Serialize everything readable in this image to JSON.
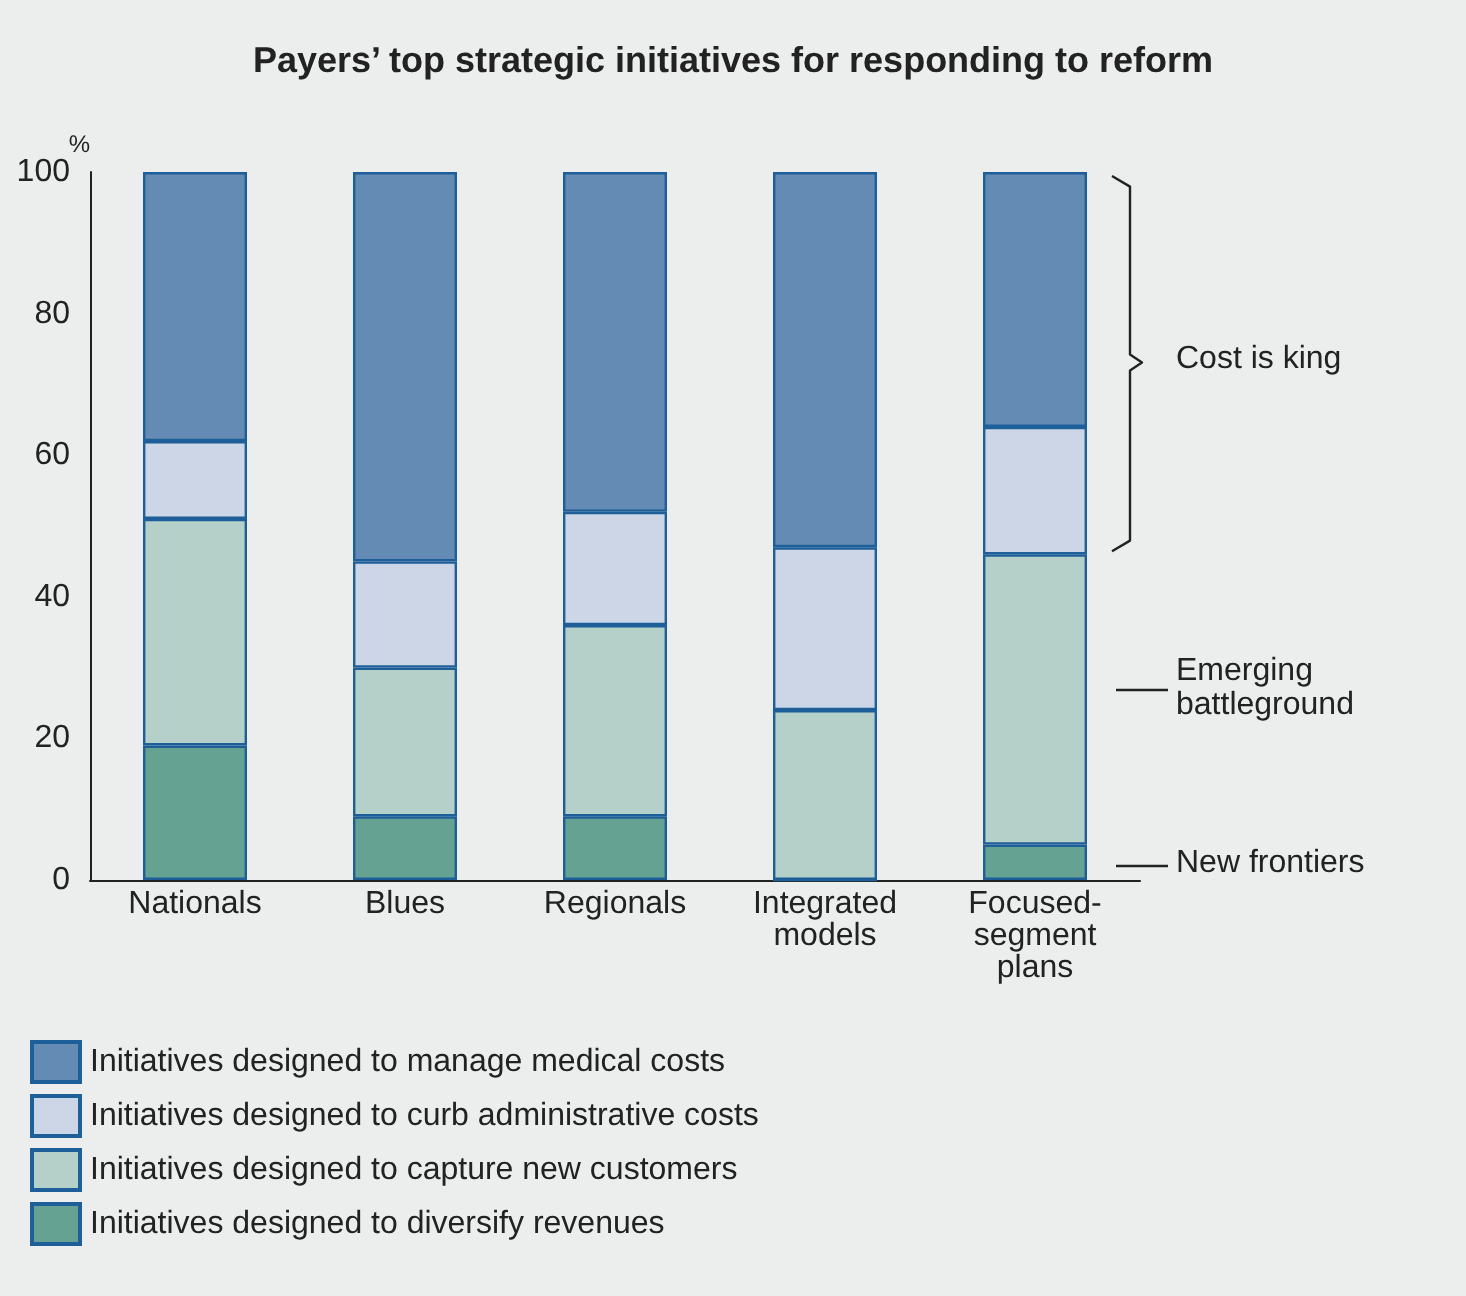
{
  "chart_data": {
    "type": "bar",
    "title": "Payers’ top strategic initiatives for responding to reform",
    "ylabel": "%",
    "categories": [
      "Nationals",
      "Blues",
      "Regionals",
      "Integrated\nmodels",
      "Focused-\nsegment\nplans"
    ],
    "stacked": true,
    "series": [
      {
        "name": "Initiatives designed to diversify revenues",
        "color": "#66a291",
        "values": [
          19,
          9,
          9,
          0,
          5
        ]
      },
      {
        "name": "Initiatives designed to capture new customers",
        "color": "#b5d0c9",
        "values": [
          32,
          21,
          27,
          24,
          41
        ]
      },
      {
        "name": "Initiatives designed to curb administrative costs",
        "color": "#cdd6e6",
        "values": [
          11,
          15,
          16,
          23,
          18
        ]
      },
      {
        "name": "Initiatives designed to manage medical costs",
        "color": "#648bb3",
        "values": [
          38,
          55,
          48,
          53,
          36
        ]
      }
    ],
    "ylim": [
      0,
      100
    ],
    "yticks": [
      0,
      20,
      40,
      60,
      80,
      100
    ],
    "grid": false,
    "legend": "bottom left",
    "annotations": [
      "Cost is king",
      "Emerging battleground",
      "New frontiers"
    ]
  }
}
